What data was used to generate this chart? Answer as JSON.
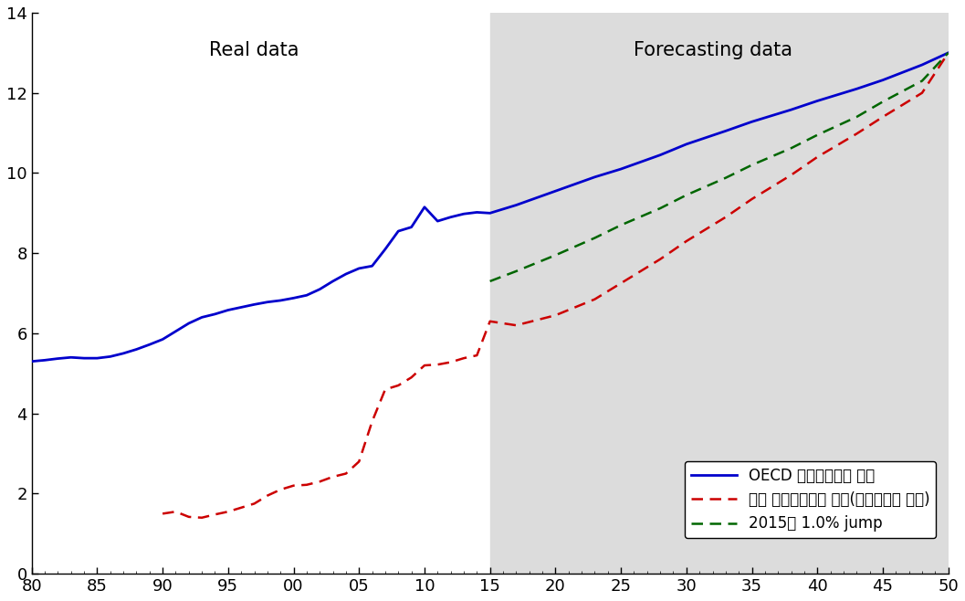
{
  "shade_color": "#dcdcdc",
  "oecd_color": "#0000cc",
  "korea_color": "#cc0000",
  "jump_color": "#006600",
  "legend_labels": [
    "OECD 공공사회지출 현물",
    "한국 공공사회지출 현물(현재추세로 예측)",
    "2015년 1.0% jump"
  ],
  "real_data_label": "Real data",
  "forecast_label": "Forecasting data",
  "yticks": [
    0,
    2,
    4,
    6,
    8,
    10,
    12,
    14
  ],
  "oecd_x": [
    80,
    81,
    82,
    83,
    84,
    85,
    86,
    87,
    88,
    89,
    90,
    91,
    92,
    93,
    94,
    95,
    96,
    97,
    98,
    99,
    100,
    101,
    102,
    103,
    104,
    105,
    106,
    107,
    108,
    109,
    110,
    111,
    112,
    113,
    114,
    115,
    117,
    120,
    123,
    125,
    128,
    130,
    133,
    135,
    138,
    140,
    143,
    145,
    148,
    150
  ],
  "oecd_y": [
    5.3,
    5.33,
    5.37,
    5.4,
    5.38,
    5.38,
    5.42,
    5.5,
    5.6,
    5.72,
    5.85,
    6.05,
    6.25,
    6.4,
    6.48,
    6.58,
    6.65,
    6.72,
    6.78,
    6.82,
    6.88,
    6.95,
    7.1,
    7.3,
    7.48,
    7.62,
    7.68,
    8.1,
    8.55,
    8.65,
    9.15,
    8.8,
    8.9,
    8.98,
    9.02,
    9.0,
    9.2,
    9.55,
    9.9,
    10.1,
    10.45,
    10.72,
    11.05,
    11.28,
    11.58,
    11.8,
    12.1,
    12.32,
    12.7,
    13.0
  ],
  "korea_x": [
    90,
    91,
    92,
    93,
    94,
    95,
    96,
    97,
    98,
    99,
    100,
    101,
    102,
    103,
    104,
    105,
    106,
    107,
    108,
    109,
    110,
    111,
    112,
    113,
    114,
    115,
    117,
    120,
    123,
    125,
    128,
    130,
    133,
    135,
    138,
    140,
    143,
    145,
    148,
    150
  ],
  "korea_y": [
    1.5,
    1.55,
    1.42,
    1.4,
    1.48,
    1.55,
    1.65,
    1.75,
    1.95,
    2.1,
    2.2,
    2.22,
    2.3,
    2.42,
    2.5,
    2.8,
    3.8,
    4.6,
    4.7,
    4.9,
    5.2,
    5.22,
    5.28,
    5.38,
    5.45,
    6.3,
    6.2,
    6.45,
    6.85,
    7.25,
    7.85,
    8.3,
    8.9,
    9.35,
    9.95,
    10.4,
    10.98,
    11.4,
    12.0,
    13.0
  ],
  "jump_x": [
    115,
    117,
    120,
    123,
    125,
    128,
    130,
    133,
    135,
    138,
    140,
    143,
    145,
    148,
    150
  ],
  "jump_y": [
    7.3,
    7.55,
    7.95,
    8.38,
    8.7,
    9.12,
    9.45,
    9.88,
    10.2,
    10.62,
    10.95,
    11.4,
    11.78,
    12.3,
    13.0
  ]
}
